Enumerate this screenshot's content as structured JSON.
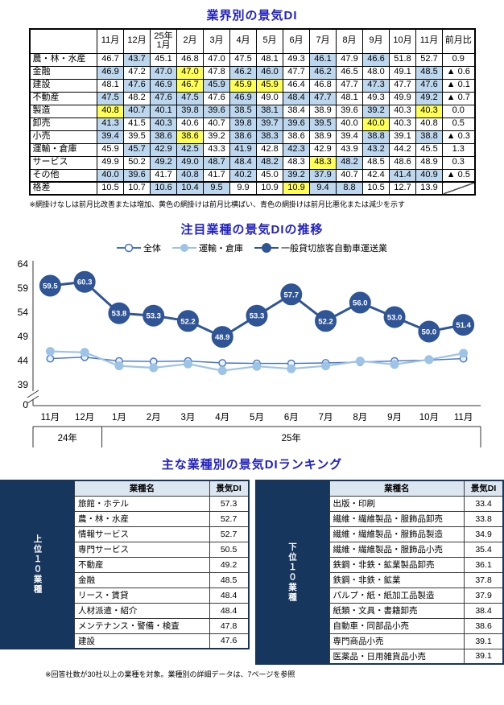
{
  "page": {
    "section1_title": "業界別の景気DI",
    "section2_title": "注目業種の景気DIの推移",
    "section3_title": "主な業種別の景気DIランキング",
    "table_note": "※網掛けなしは前月比改善または増加、黄色の網掛けは前月比横ばい、青色の網掛けは前月比悪化または減少を示す",
    "footer_note": "※回答社数が30社以上の業種を対象。業種別の詳細データは、7ページを参照"
  },
  "di_table": {
    "col_headers": [
      "",
      "11月",
      "12月",
      "25年\n1月",
      "2月",
      "3月",
      "4月",
      "5月",
      "6月",
      "7月",
      "8月",
      "9月",
      "10月",
      "11月",
      "前月比"
    ],
    "highlight_colors": {
      "yellow": "#FFFF55",
      "blue": "#BDD7EE"
    },
    "rows": [
      {
        "label": "農・林・水産",
        "values": [
          "46.7",
          "43.7",
          "45.1",
          "46.8",
          "47.0",
          "47.5",
          "48.1",
          "49.3",
          "46.1",
          "47.9",
          "46.6",
          "51.8",
          "52.7"
        ],
        "highlights": [
          "",
          "blue",
          "",
          "",
          "",
          "",
          "",
          "",
          "blue",
          "",
          "blue",
          "",
          ""
        ],
        "mom": "0.9"
      },
      {
        "label": "金融",
        "values": [
          "46.9",
          "47.2",
          "47.0",
          "47.0",
          "47.8",
          "46.2",
          "46.0",
          "47.7",
          "46.2",
          "46.5",
          "48.0",
          "49.1",
          "48.5"
        ],
        "highlights": [
          "blue",
          "",
          "blue",
          "yellow",
          "",
          "blue",
          "blue",
          "",
          "blue",
          "",
          "",
          "",
          "blue"
        ],
        "mom": "▲ 0.6"
      },
      {
        "label": "建設",
        "values": [
          "48.1",
          "47.6",
          "46.9",
          "46.7",
          "45.9",
          "45.9",
          "45.9",
          "46.4",
          "46.8",
          "47.7",
          "47.3",
          "47.7",
          "47.6"
        ],
        "highlights": [
          "",
          "blue",
          "blue",
          "yellow",
          "blue",
          "yellow",
          "yellow",
          "",
          "",
          "",
          "blue",
          "",
          "blue"
        ],
        "mom": "▲ 0.1"
      },
      {
        "label": "不動産",
        "values": [
          "47.5",
          "48.2",
          "47.6",
          "47.5",
          "47.6",
          "46.9",
          "49.0",
          "48.4",
          "47.7",
          "48.1",
          "49.3",
          "49.9",
          "49.2"
        ],
        "highlights": [
          "blue",
          "",
          "blue",
          "blue",
          "",
          "blue",
          "",
          "blue",
          "blue",
          "",
          "",
          "",
          "blue"
        ],
        "mom": "▲ 0.7"
      },
      {
        "label": "製造",
        "values": [
          "40.8",
          "40.7",
          "40.1",
          "39.8",
          "39.6",
          "38.5",
          "38.1",
          "38.4",
          "38.9",
          "39.6",
          "39.2",
          "40.3",
          "40.3"
        ],
        "highlights": [
          "yellow",
          "blue",
          "blue",
          "blue",
          "blue",
          "blue",
          "blue",
          "",
          "",
          "",
          "blue",
          "",
          "yellow"
        ],
        "mom": "0.0"
      },
      {
        "label": "卸売",
        "values": [
          "41.3",
          "41.5",
          "40.3",
          "40.6",
          "40.7",
          "39.8",
          "39.7",
          "39.6",
          "39.5",
          "40.0",
          "40.0",
          "40.3",
          "40.8"
        ],
        "highlights": [
          "blue",
          "",
          "blue",
          "",
          "",
          "blue",
          "blue",
          "blue",
          "blue",
          "",
          "yellow",
          "",
          ""
        ],
        "mom": "0.5"
      },
      {
        "label": "小売",
        "values": [
          "39.4",
          "39.5",
          "38.6",
          "38.6",
          "39.2",
          "38.6",
          "38.3",
          "38.6",
          "38.9",
          "39.4",
          "38.8",
          "39.1",
          "38.8"
        ],
        "highlights": [
          "blue",
          "",
          "blue",
          "yellow",
          "",
          "blue",
          "blue",
          "",
          "",
          "",
          "blue",
          "",
          "blue"
        ],
        "mom": "▲ 0.3"
      },
      {
        "label": "運輸・倉庫",
        "values": [
          "45.9",
          "45.7",
          "42.9",
          "42.5",
          "43.3",
          "41.9",
          "42.8",
          "42.3",
          "42.9",
          "43.9",
          "43.2",
          "44.2",
          "45.5"
        ],
        "highlights": [
          "",
          "blue",
          "blue",
          "blue",
          "",
          "blue",
          "",
          "blue",
          "",
          "",
          "blue",
          "",
          ""
        ],
        "mom": "1.3"
      },
      {
        "label": "サービス",
        "values": [
          "49.9",
          "50.2",
          "49.2",
          "49.0",
          "48.7",
          "48.4",
          "48.2",
          "48.3",
          "48.3",
          "48.2",
          "48.5",
          "48.6",
          "48.9"
        ],
        "highlights": [
          "",
          "",
          "blue",
          "blue",
          "blue",
          "blue",
          "blue",
          "",
          "yellow",
          "blue",
          "",
          "",
          ""
        ],
        "mom": "0.3"
      },
      {
        "label": "その他",
        "values": [
          "40.0",
          "39.6",
          "41.7",
          "40.8",
          "41.7",
          "40.2",
          "45.0",
          "39.2",
          "37.9",
          "40.7",
          "42.4",
          "41.4",
          "40.9"
        ],
        "highlights": [
          "blue",
          "blue",
          "",
          "blue",
          "",
          "blue",
          "",
          "blue",
          "blue",
          "",
          "",
          "blue",
          "blue"
        ],
        "mom": "▲ 0.5"
      },
      {
        "label": "格差",
        "values": [
          "10.5",
          "10.7",
          "10.6",
          "10.4",
          "9.5",
          "9.9",
          "10.9",
          "10.9",
          "9.4",
          "8.8",
          "10.5",
          "12.7",
          "13.9"
        ],
        "highlights": [
          "",
          "",
          "blue",
          "blue",
          "blue",
          "",
          "",
          "yellow",
          "blue",
          "blue",
          "",
          "",
          ""
        ],
        "mom": "__slash__",
        "thick_top": true
      }
    ]
  },
  "chart_data": {
    "type": "line",
    "title": "注目業種の景気DIの推移",
    "x_labels": [
      "11月",
      "12月",
      "1月",
      "2月",
      "3月",
      "4月",
      "5月",
      "6月",
      "7月",
      "8月",
      "9月",
      "10月",
      "11月"
    ],
    "year_groups": [
      {
        "label": "24年",
        "span": 2
      },
      {
        "label": "25年",
        "span": 11
      }
    ],
    "y_ticks": [
      64,
      59,
      54,
      49,
      44,
      39
    ],
    "y_axis_break_label": "0",
    "ylim_top": 64,
    "legend_position": "top",
    "grid": false,
    "series": [
      {
        "name": "全体",
        "color": "#4472C4",
        "marker": "open",
        "values": [
          44.4,
          44.7,
          43.9,
          43.8,
          43.9,
          43.5,
          43.4,
          43.4,
          43.5,
          43.7,
          43.9,
          44.1,
          44.4
        ]
      },
      {
        "name": "運輸・倉庫",
        "color": "#9DC3E6",
        "marker": "dot",
        "values": [
          45.9,
          45.7,
          42.9,
          42.5,
          43.3,
          41.9,
          42.8,
          42.3,
          42.9,
          43.9,
          43.2,
          44.2,
          45.5
        ]
      },
      {
        "name": "一般貸切旅客自動車運送業",
        "color": "#2F5597",
        "marker": "bubble-label",
        "values": [
          59.5,
          60.3,
          53.8,
          53.3,
          52.2,
          48.9,
          53.3,
          57.7,
          52.2,
          56.0,
          53.0,
          50.0,
          51.4
        ]
      }
    ]
  },
  "ranking": {
    "headers": [
      "業種名",
      "景気DI"
    ],
    "top": {
      "side_label": "上位１０業種",
      "rows": [
        [
          "旅館・ホテル",
          "57.3"
        ],
        [
          "農・林・水産",
          "52.7"
        ],
        [
          "情報サービス",
          "52.7"
        ],
        [
          "専門サービス",
          "50.5"
        ],
        [
          "不動産",
          "49.2"
        ],
        [
          "金融",
          "48.5"
        ],
        [
          "リース・賃貸",
          "48.4"
        ],
        [
          "人材派遣・紹介",
          "48.4"
        ],
        [
          "メンテナンス・警備・検査",
          "47.8"
        ],
        [
          "建設",
          "47.6"
        ]
      ]
    },
    "bottom": {
      "side_label": "下位１０業種",
      "rows": [
        [
          "出版・印刷",
          "33.4"
        ],
        [
          "繊維・繊維製品・服飾品卸売",
          "33.8"
        ],
        [
          "繊維・繊維製品・服飾品製造",
          "34.9"
        ],
        [
          "繊維・繊維製品・服飾品小売",
          "35.4"
        ],
        [
          "鉄鋼・非鉄・鉱業製品卸売",
          "36.1"
        ],
        [
          "鉄鋼・非鉄・鉱業",
          "37.8"
        ],
        [
          "パルプ・紙・紙加工品製造",
          "37.9"
        ],
        [
          "紙類・文具・書籍卸売",
          "38.4"
        ],
        [
          "自動車・同部品小売",
          "38.6"
        ],
        [
          "専門商品小売",
          "39.1"
        ],
        [
          "医薬品・日用雑貨品小売",
          "39.1"
        ]
      ]
    }
  }
}
